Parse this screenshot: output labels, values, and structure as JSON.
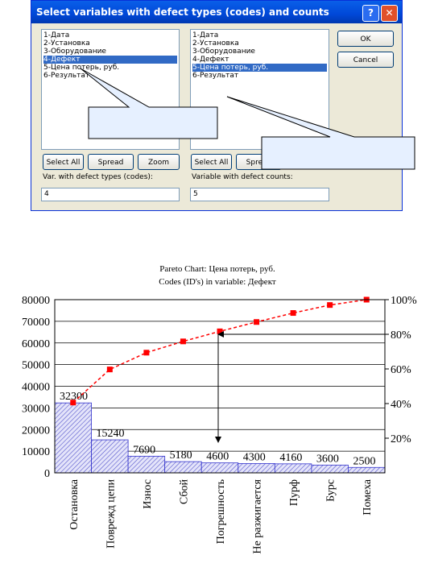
{
  "dialog": {
    "title": "Select variables with defect types (codes) and counts",
    "left_list": {
      "items": [
        "1-Дата",
        "2-Установка",
        "3-Оборудование",
        "4-Дефект",
        "5-Цена потерь, руб.",
        "6-Результат"
      ],
      "selected": 3
    },
    "right_list": {
      "items": [
        "1-Дата",
        "2-Установка",
        "3-Оборудование",
        "4-Дефект",
        "5-Цена потерь, руб.",
        "6-Результат"
      ],
      "selected": 4
    },
    "ok": "OK",
    "cancel": "Cancel",
    "left_buttons": [
      "Select All",
      "Spread",
      "Zoom"
    ],
    "right_buttons": [
      "Select All",
      "Spread"
    ],
    "left_label": "Var. with defect types (codes):",
    "left_value": "4",
    "right_label": "Variable with defect counts:",
    "right_value": "5"
  },
  "chart_data": {
    "type": "pareto",
    "title": "Pareto Chart: Цена потерь, руб.",
    "subtitle": "Codes (ID's) in variable: Дефект",
    "categories": [
      "Остановка",
      "Поврежд цепи",
      "Износ",
      "Сбой",
      "Погрешность",
      "Не разжигается",
      "Пурф",
      "Бурс",
      "Помеха"
    ],
    "series": [
      {
        "name": "Цена потерь, руб.",
        "type": "bar",
        "color": "#3333cc",
        "values": [
          32300,
          15240,
          7690,
          5180,
          4600,
          4300,
          4160,
          3600,
          2500
        ]
      },
      {
        "type": "line",
        "axis": "y2",
        "color": "#ff0000",
        "values": [
          40.6,
          59.7,
          69.4,
          75.9,
          81.7,
          87.1,
          92.3,
          96.9,
          100
        ]
      }
    ],
    "ylim": [
      0,
      80000
    ],
    "yticks": [
      0,
      10000,
      20000,
      30000,
      40000,
      50000,
      60000,
      70000,
      80000
    ],
    "y2lim": [
      0,
      100
    ],
    "y2ticks": [
      {
        "value": 20,
        "label": "20%"
      },
      {
        "value": 40,
        "label": "40%"
      },
      {
        "value": 60,
        "label": "60%"
      },
      {
        "value": 80,
        "label": "80%"
      },
      {
        "value": 100,
        "label": "100%"
      }
    ],
    "grid": true
  }
}
